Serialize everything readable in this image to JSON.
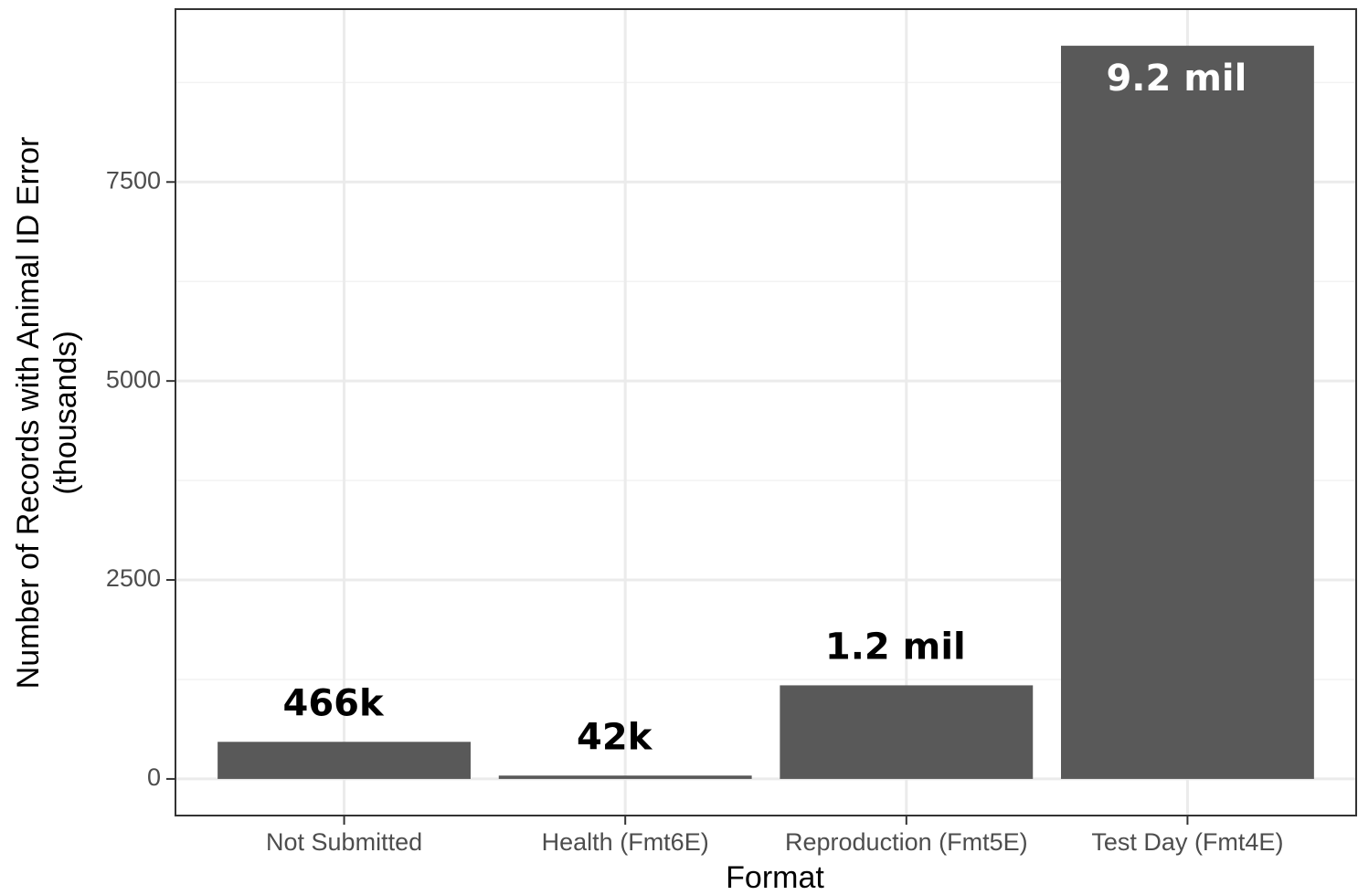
{
  "chart_data": {
    "type": "bar",
    "x_label": "Format",
    "y_label": [
      "Number of Records with Animal ID Error",
      "(thousands)"
    ],
    "categories": [
      "Not Submitted",
      "Health (Fmt6E)",
      "Reproduction (Fmt5E)",
      "Test Day (Fmt4E)"
    ],
    "values": [
      466,
      42,
      1176,
      9212
    ],
    "value_labels": [
      "466k",
      "42k",
      "1.2 mil",
      "9.2 mil"
    ],
    "color": "#595959",
    "ylim": [
      -460,
      9672
    ],
    "yticks": [
      0,
      2500,
      5000,
      7500
    ],
    "minor_yticks": [
      1250,
      3750,
      6250,
      8750
    ],
    "grid": true
  }
}
